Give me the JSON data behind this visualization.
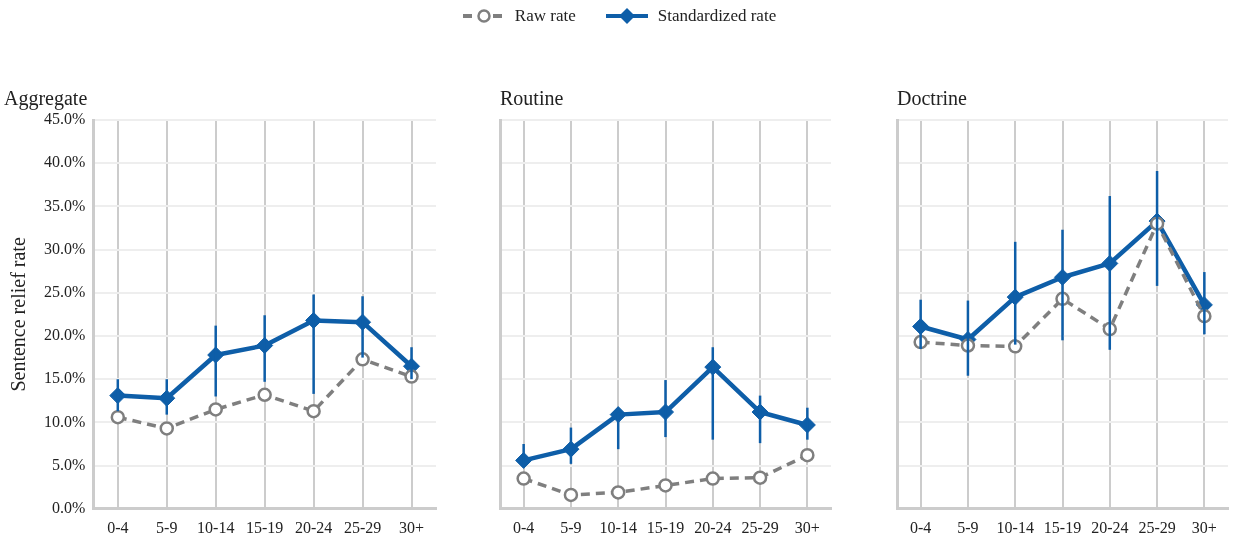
{
  "chart_data": [
    {
      "type": "line",
      "title": "Aggregate",
      "ylabel": "Sentence relief rate",
      "categories": [
        "0-4",
        "5-9",
        "10-14",
        "15-19",
        "20-24",
        "25-29",
        "30+"
      ],
      "ylim": [
        0,
        45
      ],
      "yticks": [
        {
          "value": 0,
          "label": "0.0%"
        },
        {
          "value": 5,
          "label": "5.0%"
        },
        {
          "value": 10,
          "label": "10.0%"
        },
        {
          "value": 15,
          "label": "15.0%"
        },
        {
          "value": 20,
          "label": "20.0%"
        },
        {
          "value": 25,
          "label": "25.0%"
        },
        {
          "value": 30,
          "label": "30.0%"
        },
        {
          "value": 35,
          "label": "35.0%"
        },
        {
          "value": 40,
          "label": "40.0%"
        },
        {
          "value": 45,
          "label": "45.0%"
        }
      ],
      "grid": true,
      "legend": "top",
      "series": [
        {
          "name": "Raw rate",
          "color": "#7f7f7f",
          "marker": "circle",
          "line_style": "dashed",
          "values": [
            10.6,
            9.3,
            11.5,
            13.2,
            11.3,
            17.3,
            15.3
          ]
        },
        {
          "name": "Standardized rate",
          "color": "#0e5ea8",
          "marker": "diamond",
          "line_style": "solid",
          "values": [
            13.1,
            12.8,
            17.8,
            18.9,
            21.8,
            21.6,
            16.5
          ],
          "errors": [
            [
              11.3,
              15.0
            ],
            [
              10.9,
              15.0
            ],
            [
              13.0,
              21.2
            ],
            [
              14.7,
              22.4
            ],
            [
              13.3,
              24.8
            ],
            [
              17.5,
              24.6
            ],
            [
              15.0,
              18.7
            ]
          ]
        }
      ]
    },
    {
      "type": "line",
      "title": "Routine",
      "categories": [
        "0-4",
        "5-9",
        "10-14",
        "15-19",
        "20-24",
        "25-29",
        "30+"
      ],
      "ylim": [
        0,
        45
      ],
      "yticks": [
        0,
        5,
        10,
        15,
        20,
        25,
        30,
        35,
        40,
        45
      ],
      "tick_labels": "x",
      "grid": true,
      "series": [
        {
          "color": "#7f7f7f",
          "marker": "circle",
          "line_style": "dashed",
          "values": [
            3.5,
            1.6,
            1.9,
            2.7,
            3.5,
            3.6,
            6.2
          ]
        },
        {
          "color": "#0e5ea8",
          "marker": "diamond",
          "line_style": "solid",
          "values": [
            5.6,
            6.9,
            10.9,
            11.2,
            16.4,
            11.2,
            9.7
          ],
          "errors": [
            [
              4.9,
              7.5
            ],
            [
              5.2,
              9.4
            ],
            [
              6.9,
              11.2
            ],
            [
              8.3,
              14.9
            ],
            [
              8.0,
              18.7
            ],
            [
              7.6,
              13.1
            ],
            [
              8.0,
              11.7
            ]
          ]
        }
      ]
    },
    {
      "type": "line",
      "title": "Doctrine",
      "categories": [
        "0-4",
        "5-9",
        "10-14",
        "15-19",
        "20-24",
        "25-29",
        "30+"
      ],
      "ylim": [
        0,
        45
      ],
      "yticks": [
        0,
        5,
        10,
        15,
        20,
        25,
        30,
        35,
        40,
        45
      ],
      "tick_labels": "x",
      "grid": true,
      "series": [
        {
          "color": "#7f7f7f",
          "marker": "circle",
          "line_style": "dashed",
          "values": [
            19.3,
            18.9,
            18.8,
            24.3,
            20.8,
            33.0,
            22.3
          ]
        },
        {
          "color": "#0e5ea8",
          "marker": "diamond",
          "line_style": "solid",
          "values": [
            21.1,
            19.6,
            24.5,
            26.8,
            28.4,
            33.3,
            23.6
          ],
          "errors": [
            [
              18.5,
              24.2
            ],
            [
              15.4,
              24.1
            ],
            [
              19.0,
              30.9
            ],
            [
              19.5,
              32.3
            ],
            [
              18.4,
              36.2
            ],
            [
              25.8,
              39.1
            ],
            [
              20.2,
              27.4
            ]
          ]
        }
      ]
    }
  ]
}
